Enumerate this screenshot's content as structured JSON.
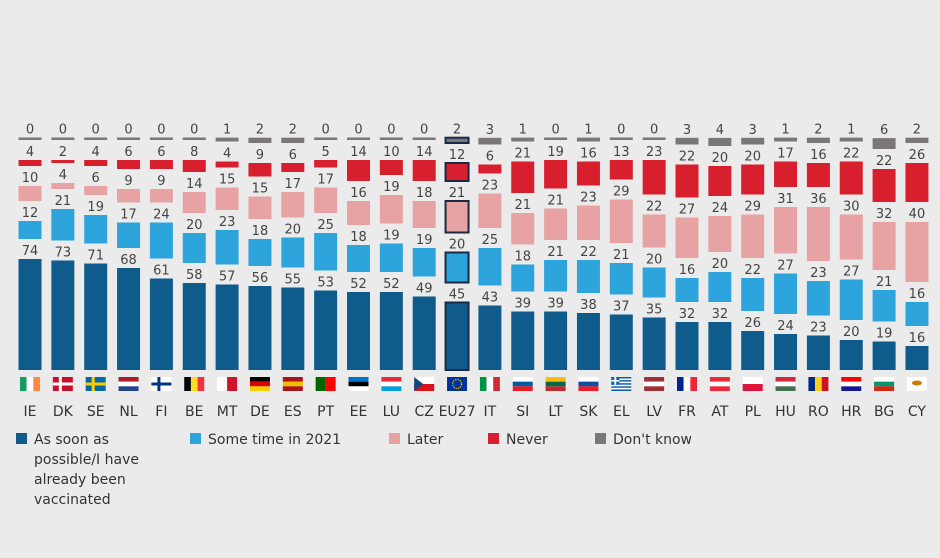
{
  "chart_data": {
    "type": "bar",
    "stacked": true,
    "categories": [
      "IE",
      "DK",
      "SE",
      "NL",
      "FI",
      "BE",
      "MT",
      "DE",
      "ES",
      "PT",
      "EE",
      "LU",
      "CZ",
      "EU27",
      "IT",
      "SI",
      "LT",
      "SK",
      "EL",
      "LV",
      "FR",
      "AT",
      "PL",
      "HU",
      "RO",
      "HR",
      "BG",
      "CY"
    ],
    "highlight": "EU27",
    "series": [
      {
        "name": "As soon as possible/I have already been vaccinated",
        "color": "#0f5b8c",
        "values": [
          74,
          73,
          71,
          68,
          61,
          58,
          57,
          56,
          55,
          53,
          52,
          52,
          49,
          45,
          43,
          39,
          39,
          38,
          37,
          35,
          32,
          32,
          26,
          24,
          23,
          20,
          19,
          16
        ]
      },
      {
        "name": "Some time in 2021",
        "color": "#2ea4dc",
        "values": [
          12,
          21,
          19,
          17,
          24,
          20,
          23,
          18,
          20,
          25,
          18,
          19,
          19,
          20,
          25,
          18,
          21,
          22,
          21,
          20,
          16,
          20,
          22,
          27,
          23,
          27,
          21,
          16
        ]
      },
      {
        "name": "Later",
        "color": "#e7a3a3",
        "values": [
          10,
          4,
          6,
          9,
          9,
          14,
          15,
          15,
          17,
          17,
          16,
          19,
          18,
          21,
          23,
          21,
          21,
          23,
          29,
          22,
          27,
          24,
          29,
          31,
          36,
          30,
          32,
          40
        ]
      },
      {
        "name": "Never",
        "color": "#d81f2e",
        "values": [
          4,
          2,
          4,
          6,
          6,
          8,
          4,
          9,
          6,
          5,
          14,
          10,
          14,
          12,
          6,
          21,
          19,
          16,
          13,
          23,
          22,
          20,
          20,
          17,
          16,
          22,
          22,
          26
        ]
      },
      {
        "name": "Don't know",
        "color": "#7a7778",
        "values": [
          0,
          0,
          0,
          0,
          0,
          0,
          1,
          2,
          2,
          0,
          0,
          0,
          0,
          2,
          3,
          1,
          0,
          1,
          0,
          0,
          3,
          4,
          3,
          1,
          2,
          1,
          6,
          2
        ]
      }
    ],
    "legend": [
      "As soon as possible/I have already been vaccinated",
      "Some time in 2021",
      "Later",
      "Never",
      "Don't know"
    ],
    "legend_position": "bottom",
    "grid": false
  }
}
